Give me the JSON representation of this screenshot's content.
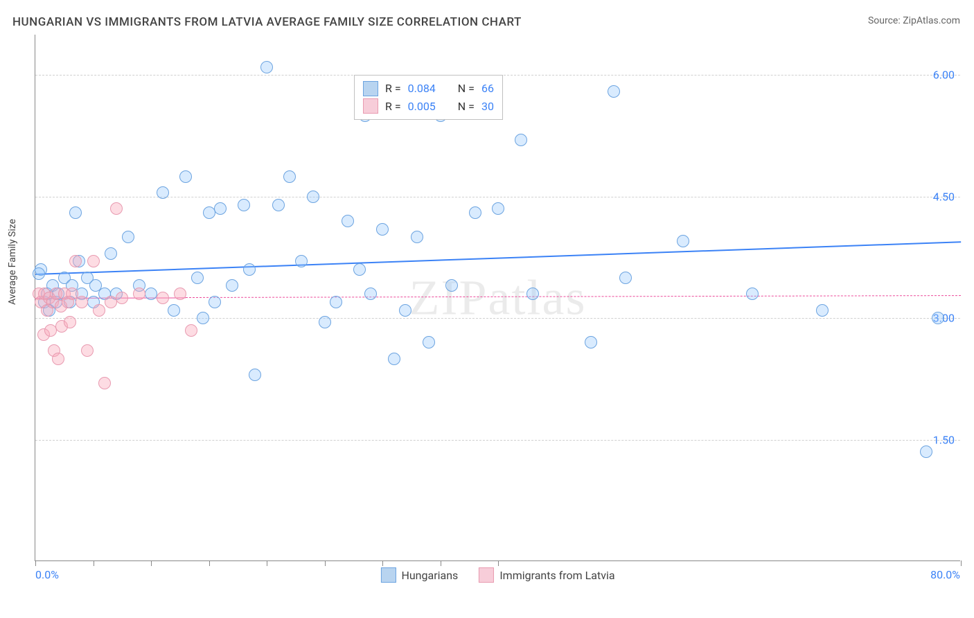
{
  "title": "HUNGARIAN VS IMMIGRANTS FROM LATVIA AVERAGE FAMILY SIZE CORRELATION CHART",
  "source_label": "Source: ",
  "source_name": "ZipAtlas.com",
  "y_axis_label": "Average Family Size",
  "watermark": "ZIPatlas",
  "chart": {
    "type": "scatter",
    "background_color": "#ffffff",
    "grid_color": "#d0d0d0",
    "axis_color": "#888888",
    "xlim": [
      0,
      80
    ],
    "ylim": [
      0,
      6.5
    ],
    "x_axis_min_label": "0.0%",
    "x_axis_max_label": "80.0%",
    "x_ticks": [
      0,
      5,
      10,
      15,
      20,
      25,
      30,
      35,
      40,
      80
    ],
    "y_ticks": [
      1.5,
      3.0,
      4.5,
      6.0
    ],
    "y_tick_labels": [
      "1.50",
      "3.00",
      "4.50",
      "6.00"
    ],
    "tick_label_color": "#3b82f6",
    "tick_label_fontsize": 16,
    "title_fontsize": 17,
    "title_color": "#444444",
    "axis_label_fontsize": 14,
    "point_radius": 9,
    "point_stroke_width": 1.5,
    "stats_legend": {
      "rows": [
        {
          "swatch_fill": "#b8d4f0",
          "swatch_border": "#6ba3e0",
          "r_label": "R = ",
          "r_value": "0.084",
          "n_label": "N = ",
          "n_value": "66",
          "value_color": "#3b82f6"
        },
        {
          "swatch_fill": "#f7cdd9",
          "swatch_border": "#e89ab0",
          "r_label": "R = ",
          "r_value": "0.005",
          "n_label": "N = ",
          "n_value": "30",
          "value_color": "#3b82f6"
        }
      ]
    },
    "bottom_legend": [
      {
        "swatch_fill": "#b8d4f0",
        "swatch_border": "#6ba3e0",
        "label": "Hungarians"
      },
      {
        "swatch_fill": "#f7cdd9",
        "swatch_border": "#e89ab0",
        "label": "Immigrants from Latvia"
      }
    ],
    "series": [
      {
        "name": "Hungarians",
        "fill": "rgba(147, 197, 253, 0.35)",
        "stroke": "#6ba3e0",
        "trend": {
          "start_y": 3.55,
          "end_y": 3.95,
          "color": "#3b82f6",
          "width": 2,
          "dash": "none",
          "full_width": true
        },
        "data": [
          [
            0.5,
            3.6
          ],
          [
            0.8,
            3.2
          ],
          [
            1.0,
            3.3
          ],
          [
            1.2,
            3.1
          ],
          [
            1.5,
            3.4
          ],
          [
            1.8,
            3.2
          ],
          [
            2.0,
            3.3
          ],
          [
            2.5,
            3.5
          ],
          [
            3.0,
            3.2
          ],
          [
            3.2,
            3.4
          ],
          [
            3.5,
            4.3
          ],
          [
            3.8,
            3.7
          ],
          [
            4.0,
            3.3
          ],
          [
            4.5,
            3.5
          ],
          [
            5.0,
            3.2
          ],
          [
            5.2,
            3.4
          ],
          [
            6.0,
            3.3
          ],
          [
            6.5,
            3.8
          ],
          [
            7.0,
            3.3
          ],
          [
            8.0,
            4.0
          ],
          [
            9.0,
            3.4
          ],
          [
            10.0,
            3.3
          ],
          [
            11.0,
            4.55
          ],
          [
            12.0,
            3.1
          ],
          [
            13.0,
            4.75
          ],
          [
            14.0,
            3.5
          ],
          [
            14.5,
            3.0
          ],
          [
            15.0,
            4.3
          ],
          [
            15.5,
            3.2
          ],
          [
            16.0,
            4.35
          ],
          [
            17.0,
            3.4
          ],
          [
            18.0,
            4.4
          ],
          [
            18.5,
            3.6
          ],
          [
            19.0,
            2.3
          ],
          [
            20.0,
            6.1
          ],
          [
            21.0,
            4.4
          ],
          [
            22.0,
            4.75
          ],
          [
            23.0,
            3.7
          ],
          [
            24.0,
            4.5
          ],
          [
            25.0,
            2.95
          ],
          [
            26.0,
            3.2
          ],
          [
            27.0,
            4.2
          ],
          [
            28.0,
            3.6
          ],
          [
            28.5,
            5.5
          ],
          [
            29.0,
            3.3
          ],
          [
            30.0,
            4.1
          ],
          [
            31.0,
            2.5
          ],
          [
            32.0,
            3.1
          ],
          [
            33.0,
            4.0
          ],
          [
            34.0,
            2.7
          ],
          [
            35.0,
            5.5
          ],
          [
            36.0,
            3.4
          ],
          [
            38.0,
            4.3
          ],
          [
            39.0,
            5.75
          ],
          [
            40.0,
            4.35
          ],
          [
            42.0,
            5.2
          ],
          [
            43.0,
            3.3
          ],
          [
            48.0,
            2.7
          ],
          [
            50.0,
            5.8
          ],
          [
            51.0,
            3.5
          ],
          [
            56.0,
            3.95
          ],
          [
            62.0,
            3.3
          ],
          [
            68.0,
            3.1
          ],
          [
            77.0,
            1.35
          ],
          [
            78.0,
            3.0
          ],
          [
            0.3,
            3.55
          ]
        ]
      },
      {
        "name": "Immigrants from Latvia",
        "fill": "rgba(249, 168, 186, 0.4)",
        "stroke": "#e89ab0",
        "trend": {
          "start_y": 3.25,
          "end_y": 3.28,
          "color": "#ec4899",
          "width": 1.5,
          "dash": "4 4",
          "solid_until_x": 13,
          "full_width": true
        },
        "data": [
          [
            0.3,
            3.3
          ],
          [
            0.5,
            3.2
          ],
          [
            0.7,
            2.8
          ],
          [
            0.8,
            3.3
          ],
          [
            1.0,
            3.1
          ],
          [
            1.2,
            3.25
          ],
          [
            1.3,
            2.85
          ],
          [
            1.5,
            3.2
          ],
          [
            1.6,
            2.6
          ],
          [
            1.8,
            3.3
          ],
          [
            2.0,
            2.5
          ],
          [
            2.2,
            3.15
          ],
          [
            2.3,
            2.9
          ],
          [
            2.5,
            3.3
          ],
          [
            2.8,
            3.2
          ],
          [
            3.0,
            2.95
          ],
          [
            3.2,
            3.3
          ],
          [
            3.5,
            3.7
          ],
          [
            4.0,
            3.2
          ],
          [
            4.5,
            2.6
          ],
          [
            5.0,
            3.7
          ],
          [
            5.5,
            3.1
          ],
          [
            6.0,
            2.2
          ],
          [
            6.5,
            3.2
          ],
          [
            7.0,
            4.35
          ],
          [
            7.5,
            3.25
          ],
          [
            9.0,
            3.3
          ],
          [
            11.0,
            3.25
          ],
          [
            12.5,
            3.3
          ],
          [
            13.5,
            2.85
          ]
        ]
      }
    ]
  }
}
